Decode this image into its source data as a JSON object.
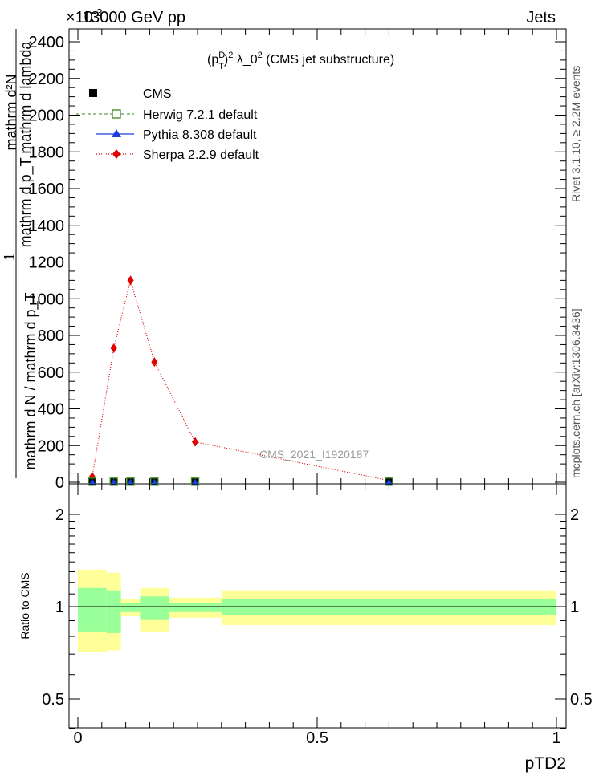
{
  "header": {
    "left": "13000 GeV pp",
    "right": "Jets",
    "exponent": "×10",
    "exponent_power": "-3"
  },
  "side_labels": {
    "rivet": "Rivet 3.1.10, ≥ 2.2M events",
    "mcplots": "mcplots.cern.ch [arXiv:1306.3436]"
  },
  "watermark": "CMS_2021_I1920187",
  "main_title": {
    "prefix": "(p",
    "sup1": "D",
    "sub1": "T",
    "mid": ")",
    "sup2": "2",
    "text": " λ_0",
    "sup3": "2",
    "suffix": " (CMS jet substructure)"
  },
  "y_label": {
    "numerator": "mathrm d²N",
    "denominator": "mathrm d p_T mathrm d lambda",
    "prefactor": "1",
    "norm_top": "mathrm d N / mathrm d p_T",
    "norm_sub": "T"
  },
  "x_label": "pTD2",
  "ratio_ylabel": "Ratio to CMS",
  "legend": [
    {
      "label": "CMS",
      "color": "#000000",
      "marker": "filled-square",
      "line": "none"
    },
    {
      "label": "Herwig 7.2.1 default",
      "color": "#3a8a1c",
      "marker": "open-square",
      "line": "dashed"
    },
    {
      "label": "Pythia 8.308 default",
      "color": "#1c3fd8",
      "marker": "triangle",
      "line": "solid"
    },
    {
      "label": "Sherpa 2.2.9 default",
      "color": "#e00000",
      "marker": "diamond",
      "line": "dotted"
    }
  ],
  "chart_data": {
    "type": "line",
    "xlim": [
      0,
      1
    ],
    "ylim": [
      0,
      2.4
    ],
    "x_ticks": [
      "0",
      "0.5",
      "1"
    ],
    "y_ticks": [
      "0",
      "200",
      "400",
      "600",
      "800",
      "1000",
      "1200",
      "1400",
      "1600",
      "1800",
      "2000",
      "2200",
      "2400"
    ],
    "bins": [
      [
        0,
        0.06
      ],
      [
        0.06,
        0.09
      ],
      [
        0.09,
        0.13
      ],
      [
        0.13,
        0.19
      ],
      [
        0.19,
        0.3
      ],
      [
        0.3,
        1.0
      ]
    ],
    "x": [
      0.03,
      0.075,
      0.11,
      0.16,
      0.245,
      0.65
    ],
    "series": [
      {
        "name": "CMS",
        "values": [
          0.003,
          0.003,
          0.003,
          0.003,
          0.003,
          0.003
        ]
      },
      {
        "name": "Herwig 7.2.1 default",
        "values": [
          0.003,
          0.003,
          0.003,
          0.003,
          0.003,
          0.003
        ]
      },
      {
        "name": "Pythia 8.308 default",
        "values": [
          0.003,
          0.003,
          0.003,
          0.003,
          0.003,
          0.003
        ]
      },
      {
        "name": "Sherpa 2.2.9 default",
        "values": [
          0.03,
          0.73,
          1.1,
          0.655,
          0.22,
          0.01
        ],
        "errors": [
          0.005,
          0.02,
          0.025,
          0.015,
          0.01,
          0.003
        ]
      }
    ],
    "ratio": {
      "ylim": [
        0.33,
        2.25
      ],
      "y_ticks": [
        "0.5",
        "1",
        "2"
      ],
      "band_inner": [
        [
          0.83,
          1.15
        ],
        [
          0.82,
          1.13
        ],
        [
          0.96,
          1.03
        ],
        [
          0.91,
          1.08
        ],
        [
          0.96,
          1.03
        ],
        [
          0.94,
          1.06
        ]
      ],
      "band_outer": [
        [
          0.71,
          1.32
        ],
        [
          0.72,
          1.29
        ],
        [
          0.93,
          1.06
        ],
        [
          0.83,
          1.15
        ],
        [
          0.92,
          1.07
        ],
        [
          0.87,
          1.13
        ]
      ]
    }
  }
}
